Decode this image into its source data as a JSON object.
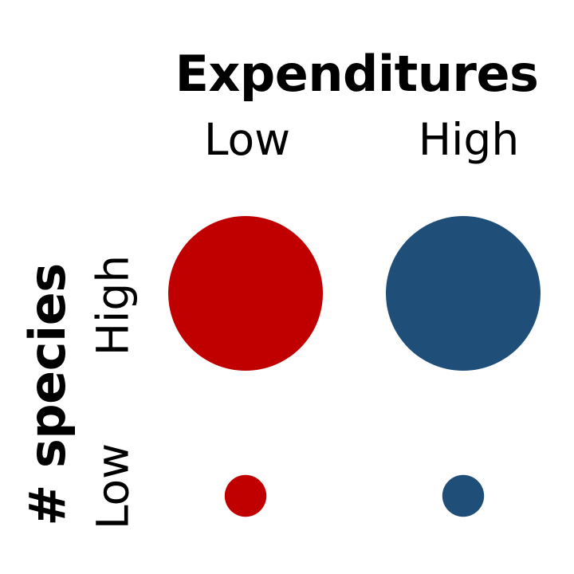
{
  "chart_data": {
    "type": "scatter",
    "title": "",
    "xlabel": "Expenditures",
    "ylabel": "# species",
    "x_categories": [
      "Low",
      "High"
    ],
    "y_categories": [
      "High",
      "Low"
    ],
    "points": [
      {
        "x": "Low",
        "y": "High",
        "size": 1.0,
        "color": "#C00000"
      },
      {
        "x": "High",
        "y": "High",
        "size": 1.0,
        "color": "#1F4E79"
      },
      {
        "x": "Low",
        "y": "Low",
        "size": 0.27,
        "color": "#C00000"
      },
      {
        "x": "High",
        "y": "Low",
        "size": 0.27,
        "color": "#1F4E79"
      }
    ],
    "colors": {
      "low_expenditure": "#C00000",
      "high_expenditure": "#1F4E79"
    }
  }
}
